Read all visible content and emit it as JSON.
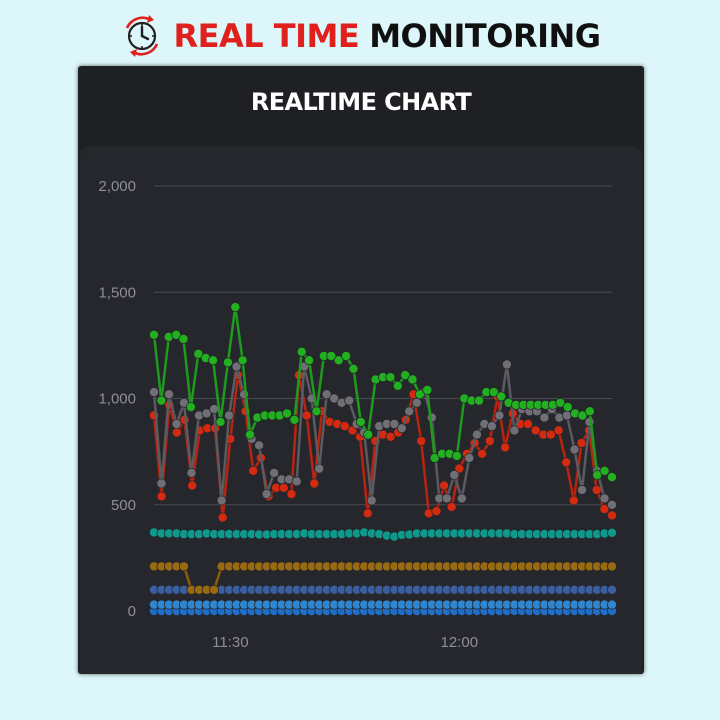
{
  "header": {
    "title_part1": "REAL TIME",
    "title_part2": "MONITORING",
    "icon": "clock-refresh-icon",
    "accent_color": "#e0201c"
  },
  "panel": {
    "title": "REALTIME CHART"
  },
  "chart_data": {
    "type": "line",
    "title": "REALTIME CHART",
    "xlabel": "",
    "ylabel": "",
    "ylim": [
      0,
      2000
    ],
    "yticks": [
      0,
      500,
      1000,
      1500,
      2000
    ],
    "ytick_labels": [
      "0",
      "500",
      "1,000",
      "1,500",
      "2,000"
    ],
    "x_range_minutes": [
      0,
      60
    ],
    "xticks_minutes": [
      10,
      40
    ],
    "xtick_labels": [
      "11:30",
      "12:00"
    ],
    "grid": true,
    "legend": "none",
    "series": [
      {
        "color": "#22b021",
        "line_color": "#1f9a1e",
        "values": [
          1300,
          990,
          1290,
          1300,
          1280,
          960,
          1210,
          1190,
          1180,
          890,
          1170,
          1430,
          1180,
          830,
          910,
          920,
          920,
          920,
          930,
          900,
          1220,
          1180,
          940,
          1200,
          1200,
          1180,
          1200,
          1140,
          890,
          830,
          1090,
          1100,
          1100,
          1060,
          1110,
          1090,
          1020,
          1040,
          720,
          740,
          740,
          730,
          1000,
          990,
          990,
          1030,
          1030,
          1010,
          980,
          970,
          970,
          970,
          970,
          970,
          970,
          980,
          960,
          930,
          920,
          940,
          640,
          660,
          630
        ]
      },
      {
        "color": "#6f6f75",
        "line_color": "#5a5a60",
        "values": [
          1030,
          600,
          1020,
          880,
          980,
          650,
          920,
          930,
          950,
          520,
          920,
          1150,
          1020,
          810,
          780,
          550,
          650,
          620,
          620,
          610,
          1150,
          1000,
          670,
          1020,
          1000,
          980,
          990,
          880,
          840,
          520,
          870,
          880,
          880,
          860,
          940,
          980,
          1030,
          910,
          530,
          530,
          640,
          530,
          720,
          830,
          880,
          870,
          920,
          1160,
          850,
          950,
          940,
          940,
          910,
          950,
          910,
          920,
          760,
          570,
          890,
          660,
          530,
          500
        ]
      },
      {
        "color": "#d42a10",
        "line_color": "#b82410",
        "values": [
          920,
          540,
          970,
          840,
          900,
          590,
          850,
          860,
          860,
          440,
          810,
          1110,
          940,
          660,
          720,
          540,
          580,
          580,
          550,
          1110,
          920,
          600,
          940,
          890,
          880,
          870,
          850,
          820,
          460,
          800,
          830,
          820,
          840,
          900,
          1020,
          800,
          460,
          470,
          590,
          490,
          670,
          740,
          790,
          740,
          800,
          1010,
          770,
          930,
          880,
          880,
          850,
          830,
          830,
          850,
          700,
          520,
          790,
          850,
          570,
          480,
          450
        ]
      },
      {
        "color": "#0d9a8c",
        "line_color": "#0b8a7d",
        "values": [
          370,
          365,
          365,
          365,
          362,
          362,
          362,
          365,
          362,
          362,
          362,
          362,
          362,
          362,
          360,
          360,
          362,
          362,
          362,
          362,
          365,
          362,
          362,
          362,
          362,
          362,
          365,
          365,
          370,
          365,
          362,
          355,
          350,
          358,
          360,
          365,
          365,
          365,
          365,
          365,
          365,
          365,
          365,
          365,
          365,
          365,
          365,
          365,
          362,
          362,
          362,
          362,
          362,
          362,
          362,
          362,
          362,
          362,
          362,
          362,
          365,
          368
        ]
      },
      {
        "color": "#9a6a10",
        "line_color": "#8a5c0c",
        "values": [
          210,
          210,
          210,
          210,
          210,
          100,
          100,
          100,
          100,
          210,
          210,
          210,
          210,
          210,
          210,
          210,
          210,
          210,
          210,
          210,
          210,
          210,
          210,
          210,
          210,
          210,
          210,
          210,
          210,
          210,
          210,
          210,
          210,
          210,
          210,
          210,
          210,
          210,
          210,
          210,
          210,
          210,
          210,
          210,
          210,
          210,
          210,
          210,
          210,
          210,
          210,
          210,
          210,
          210,
          210,
          210,
          210,
          210,
          210,
          210,
          210,
          210
        ]
      },
      {
        "color": "#3a5fa0",
        "line_color": "#34558f",
        "values": [
          100,
          100,
          100,
          100,
          100,
          100,
          100,
          100,
          100,
          100,
          100,
          100,
          100,
          100,
          100,
          100,
          100,
          100,
          100,
          100,
          100,
          100,
          100,
          100,
          100,
          100,
          100,
          100,
          100,
          100,
          100,
          100,
          100,
          100,
          100,
          100,
          100,
          100,
          100,
          100,
          100,
          100,
          100,
          100,
          100,
          100,
          100,
          100,
          100,
          100,
          100,
          100,
          100,
          100,
          100,
          100,
          100,
          100,
          100,
          100,
          100,
          100
        ]
      },
      {
        "color": "#2f86cf",
        "line_color": "#2a76b8",
        "values": [
          30,
          30,
          30,
          30,
          30,
          30,
          30,
          30,
          30,
          30,
          30,
          30,
          30,
          30,
          30,
          30,
          30,
          30,
          30,
          30,
          30,
          30,
          30,
          30,
          30,
          30,
          30,
          30,
          30,
          30,
          30,
          30,
          30,
          30,
          30,
          30,
          30,
          30,
          30,
          30,
          30,
          30,
          30,
          30,
          30,
          30,
          30,
          30,
          30,
          30,
          30,
          30,
          30,
          30,
          30,
          30,
          30,
          30,
          30,
          30,
          30,
          30
        ]
      },
      {
        "color": "#1f6fc8",
        "line_color": "#1c64b4",
        "values": [
          0,
          0,
          0,
          0,
          0,
          0,
          0,
          0,
          0,
          0,
          0,
          0,
          0,
          0,
          0,
          0,
          0,
          0,
          0,
          0,
          0,
          0,
          0,
          0,
          0,
          0,
          0,
          0,
          0,
          0,
          0,
          0,
          0,
          0,
          0,
          0,
          0,
          0,
          0,
          0,
          0,
          0,
          0,
          0,
          0,
          0,
          0,
          0,
          0,
          0,
          0,
          0,
          0,
          0,
          0,
          0,
          0,
          0,
          0,
          0,
          0,
          0
        ]
      }
    ]
  }
}
